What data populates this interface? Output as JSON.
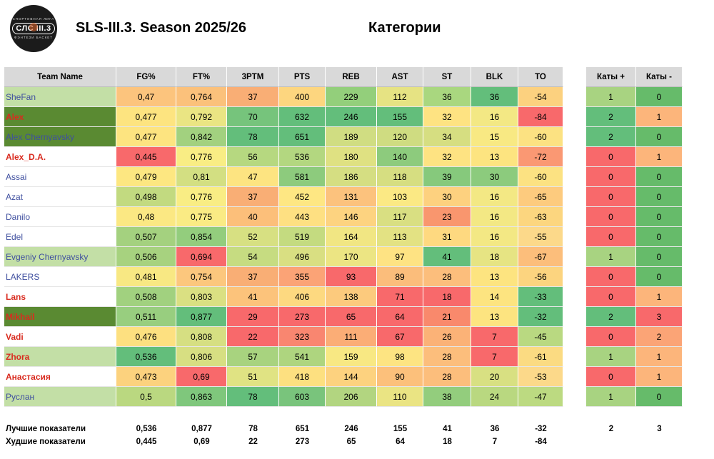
{
  "header": {
    "title": "SLS-III.3. Season 2025/26",
    "subtitle": "Категории",
    "logo_text": "СЛС III.3",
    "logo_top_text": "СПОРТИВНАЯ ЛИГА",
    "logo_bottom_text": "ФЭНТЕЗИ БАСКЕТ"
  },
  "table": {
    "columns": [
      "Team Name",
      "FG%",
      "FT%",
      "3PTM",
      "PTS",
      "REB",
      "AST",
      "ST",
      "BLK",
      "TO",
      "Каты +",
      "Каты -"
    ],
    "rows": [
      {
        "name": "SheFan",
        "nameColor": "#3f4f9f",
        "nameBold": false,
        "nameBg": "#c3dfa6",
        "cells": [
          [
            "0,47",
            "#fcc47d"
          ],
          [
            "0,764",
            "#fbc17b"
          ],
          [
            "37",
            "#f9ae75"
          ],
          [
            "400",
            "#fdd67f"
          ],
          [
            "229",
            "#93cf7b"
          ],
          [
            "112",
            "#e6e383"
          ],
          [
            "36",
            "#a9d77f"
          ],
          [
            "36",
            "#63be7b"
          ],
          [
            "-54",
            "#fcd17f"
          ],
          [
            "1",
            "#a8d381"
          ],
          [
            "0",
            "#66bb6a"
          ]
        ]
      },
      {
        "name": "Alex",
        "nameColor": "#d92b1f",
        "nameBold": true,
        "nameBg": "#5a8a32",
        "cells": [
          [
            "0,477",
            "#fde480"
          ],
          [
            "0,792",
            "#eae583"
          ],
          [
            "70",
            "#76c47c"
          ],
          [
            "632",
            "#63be7b"
          ],
          [
            "246",
            "#63be7b"
          ],
          [
            "155",
            "#63be7b"
          ],
          [
            "32",
            "#fee382"
          ],
          [
            "16",
            "#f3e884"
          ],
          [
            "-84",
            "#f8696b"
          ],
          [
            "2",
            "#63be7b"
          ],
          [
            "1",
            "#fcb57b"
          ]
        ]
      },
      {
        "name": "Alex Chernyavsky",
        "nameColor": "#3f4f9f",
        "nameBold": false,
        "nameBg": "#5a8a32",
        "cells": [
          [
            "0,477",
            "#fde480"
          ],
          [
            "0,842",
            "#a2d17f"
          ],
          [
            "78",
            "#63be7b"
          ],
          [
            "651",
            "#63be7b"
          ],
          [
            "189",
            "#d0dd82"
          ],
          [
            "120",
            "#cfdc81"
          ],
          [
            "34",
            "#d6de81"
          ],
          [
            "15",
            "#f8e983"
          ],
          [
            "-60",
            "#fce282"
          ],
          [
            "2",
            "#63be7b"
          ],
          [
            "0",
            "#66bb6a"
          ]
        ]
      },
      {
        "name": "Alex_D.A.",
        "nameColor": "#d92b1f",
        "nameBold": true,
        "nameBg": "#ffffff",
        "cells": [
          [
            "0,445",
            "#f8696b"
          ],
          [
            "0,776",
            "#f9ed84"
          ],
          [
            "56",
            "#b6d880"
          ],
          [
            "536",
            "#b3d780"
          ],
          [
            "180",
            "#dfe182"
          ],
          [
            "140",
            "#8dcb7d"
          ],
          [
            "32",
            "#fee382"
          ],
          [
            "13",
            "#fde480"
          ],
          [
            "-72",
            "#fa9873"
          ],
          [
            "0",
            "#f8696b"
          ],
          [
            "1",
            "#fcb57b"
          ]
        ]
      },
      {
        "name": "Assai",
        "nameColor": "#3f4f9f",
        "nameBold": false,
        "nameBg": "#ffffff",
        "cells": [
          [
            "0,479",
            "#fde781"
          ],
          [
            "0,81",
            "#d3df82"
          ],
          [
            "47",
            "#fde481"
          ],
          [
            "581",
            "#8dcb7d"
          ],
          [
            "186",
            "#d5de82"
          ],
          [
            "118",
            "#d6de81"
          ],
          [
            "39",
            "#86c97c"
          ],
          [
            "30",
            "#8ccb7d"
          ],
          [
            "-60",
            "#fce282"
          ],
          [
            "0",
            "#f8696b"
          ],
          [
            "0",
            "#66bb6a"
          ]
        ]
      },
      {
        "name": "Azat",
        "nameColor": "#3f4f9f",
        "nameBold": false,
        "nameBg": "#ffffff",
        "cells": [
          [
            "0,498",
            "#c2da80"
          ],
          [
            "0,776",
            "#f9ed84"
          ],
          [
            "37",
            "#f9ae75"
          ],
          [
            "452",
            "#fee783"
          ],
          [
            "131",
            "#fcc27d"
          ],
          [
            "103",
            "#fbe984"
          ],
          [
            "30",
            "#fdd17f"
          ],
          [
            "16",
            "#f3e884"
          ],
          [
            "-65",
            "#fdcb7e"
          ],
          [
            "0",
            "#f8696b"
          ],
          [
            "0",
            "#66bb6a"
          ]
        ]
      },
      {
        "name": "Danilo",
        "nameColor": "#3f4f9f",
        "nameBold": false,
        "nameBg": "#ffffff",
        "cells": [
          [
            "0,48",
            "#fbe883"
          ],
          [
            "0,775",
            "#faeb84"
          ],
          [
            "40",
            "#fcbf7a"
          ],
          [
            "443",
            "#fee082"
          ],
          [
            "146",
            "#fdd380"
          ],
          [
            "117",
            "#d9df82"
          ],
          [
            "23",
            "#f9966e"
          ],
          [
            "16",
            "#f3e884"
          ],
          [
            "-63",
            "#fcd67f"
          ],
          [
            "0",
            "#f8696b"
          ],
          [
            "0",
            "#66bb6a"
          ]
        ]
      },
      {
        "name": "Edel",
        "nameColor": "#3f4f9f",
        "nameBold": false,
        "nameBg": "#ffffff",
        "cells": [
          [
            "0,507",
            "#a4d17f"
          ],
          [
            "0,854",
            "#93cd7d"
          ],
          [
            "52",
            "#d7e082"
          ],
          [
            "519",
            "#c4db80"
          ],
          [
            "164",
            "#f1e683"
          ],
          [
            "113",
            "#e3e283"
          ],
          [
            "31",
            "#fed980"
          ],
          [
            "16",
            "#f3e884"
          ],
          [
            "-55",
            "#fcd98a"
          ],
          [
            "0",
            "#f8696b"
          ],
          [
            "0",
            "#66bb6a"
          ]
        ]
      },
      {
        "name": "Evgeniy Chernyavsky",
        "nameColor": "#3f4f9f",
        "nameBold": false,
        "nameBg": "#c3dfa6",
        "cells": [
          [
            "0,506",
            "#a7d27f"
          ],
          [
            "0,694",
            "#f8696b"
          ],
          [
            "54",
            "#c6dc81"
          ],
          [
            "496",
            "#d9df82"
          ],
          [
            "170",
            "#ece583"
          ],
          [
            "97",
            "#fee383"
          ],
          [
            "41",
            "#63be7b"
          ],
          [
            "18",
            "#e6e483"
          ],
          [
            "-67",
            "#fcbe7b"
          ],
          [
            "1",
            "#a8d381"
          ],
          [
            "0",
            "#66bb6a"
          ]
        ]
      },
      {
        "name": "LAKERS",
        "nameColor": "#3f4f9f",
        "nameBold": false,
        "nameBg": "#ffffff",
        "cells": [
          [
            "0,481",
            "#f8e883"
          ],
          [
            "0,754",
            "#fcc77d"
          ],
          [
            "37",
            "#f9ae75"
          ],
          [
            "355",
            "#fba376"
          ],
          [
            "93",
            "#f8696b"
          ],
          [
            "89",
            "#fbbd7b"
          ],
          [
            "28",
            "#fcbe7c"
          ],
          [
            "13",
            "#fde480"
          ],
          [
            "-56",
            "#fcd47f"
          ],
          [
            "0",
            "#f8696b"
          ],
          [
            "0",
            "#66bb6a"
          ]
        ]
      },
      {
        "name": "Lans",
        "nameColor": "#d92b1f",
        "nameBold": true,
        "nameBg": "#ffffff",
        "cells": [
          [
            "0,508",
            "#a1d17f"
          ],
          [
            "0,803",
            "#dae082"
          ],
          [
            "41",
            "#fcc37b"
          ],
          [
            "406",
            "#fdd980"
          ],
          [
            "138",
            "#fcca7d"
          ],
          [
            "71",
            "#f8696b"
          ],
          [
            "18",
            "#f8696b"
          ],
          [
            "14",
            "#fde480"
          ],
          [
            "-33",
            "#63be7b"
          ],
          [
            "0",
            "#f8696b"
          ],
          [
            "1",
            "#fcb57b"
          ]
        ]
      },
      {
        "name": "Mikhail",
        "nameColor": "#d92b1f",
        "nameBold": true,
        "nameBg": "#5a8a32",
        "cells": [
          [
            "0,511",
            "#98ce7f"
          ],
          [
            "0,877",
            "#63be7b"
          ],
          [
            "29",
            "#f8696b"
          ],
          [
            "273",
            "#f8696b"
          ],
          [
            "65",
            "#f8696b"
          ],
          [
            "64",
            "#f8696b"
          ],
          [
            "21",
            "#f9896c"
          ],
          [
            "13",
            "#fde480"
          ],
          [
            "-32",
            "#63be7b"
          ],
          [
            "2",
            "#63be7b"
          ],
          [
            "3",
            "#f8696b"
          ]
        ]
      },
      {
        "name": "Vadi",
        "nameColor": "#d92b1f",
        "nameBold": true,
        "nameBg": "#ffffff",
        "cells": [
          [
            "0,476",
            "#fde080"
          ],
          [
            "0,808",
            "#d6df82"
          ],
          [
            "22",
            "#f8696b"
          ],
          [
            "323",
            "#f98670"
          ],
          [
            "111",
            "#fbad76"
          ],
          [
            "67",
            "#f8696b"
          ],
          [
            "26",
            "#fbb277"
          ],
          [
            "7",
            "#f8696b"
          ],
          [
            "-45",
            "#b9d981"
          ],
          [
            "0",
            "#f8696b"
          ],
          [
            "2",
            "#fba476"
          ]
        ]
      },
      {
        "name": "Zhora",
        "nameColor": "#d92b1f",
        "nameBold": true,
        "nameBg": "#c3dfa6",
        "cells": [
          [
            "0,536",
            "#63be7b"
          ],
          [
            "0,806",
            "#d7df82"
          ],
          [
            "57",
            "#a8d37f"
          ],
          [
            "541",
            "#aed57f"
          ],
          [
            "159",
            "#f8e883"
          ],
          [
            "98",
            "#fde482"
          ],
          [
            "28",
            "#fcbe7c"
          ],
          [
            "7",
            "#f8696b"
          ],
          [
            "-61",
            "#fbdb82"
          ],
          [
            "1",
            "#a8d381"
          ],
          [
            "1",
            "#fcb57b"
          ]
        ]
      },
      {
        "name": "Анастасия",
        "nameColor": "#d92b1f",
        "nameBold": true,
        "nameBg": "#ffffff",
        "cells": [
          [
            "0,473",
            "#fcd27e"
          ],
          [
            "0,69",
            "#f8696b"
          ],
          [
            "51",
            "#e0e383"
          ],
          [
            "418",
            "#fde080"
          ],
          [
            "144",
            "#fdd27f"
          ],
          [
            "90",
            "#fcc07b"
          ],
          [
            "28",
            "#fcbe7c"
          ],
          [
            "20",
            "#d8e082"
          ],
          [
            "-53",
            "#fcd98a"
          ],
          [
            "0",
            "#f8696b"
          ],
          [
            "1",
            "#fcb57b"
          ]
        ]
      },
      {
        "name": "Руслан",
        "nameColor": "#3f4f9f",
        "nameBold": false,
        "nameBg": "#c3dfa6",
        "cells": [
          [
            "0,5",
            "#bad880"
          ],
          [
            "0,863",
            "#7fc77c"
          ],
          [
            "78",
            "#63be7b"
          ],
          [
            "603",
            "#79c47c"
          ],
          [
            "206",
            "#b2d580"
          ],
          [
            "110",
            "#eae483"
          ],
          [
            "38",
            "#93cd7d"
          ],
          [
            "24",
            "#b9d880"
          ],
          [
            "-47",
            "#bcda81"
          ],
          [
            "1",
            "#a8d381"
          ],
          [
            "0",
            "#66bb6a"
          ]
        ]
      }
    ],
    "footer": [
      {
        "label": "Лучшие показатели",
        "values": [
          "0,536",
          "0,877",
          "78",
          "651",
          "246",
          "155",
          "41",
          "36",
          "-32",
          "2",
          "3"
        ]
      },
      {
        "label": "Худшие показатели",
        "values": [
          "0,445",
          "0,69",
          "22",
          "273",
          "65",
          "64",
          "18",
          "7",
          "-84",
          "",
          ""
        ]
      }
    ]
  }
}
